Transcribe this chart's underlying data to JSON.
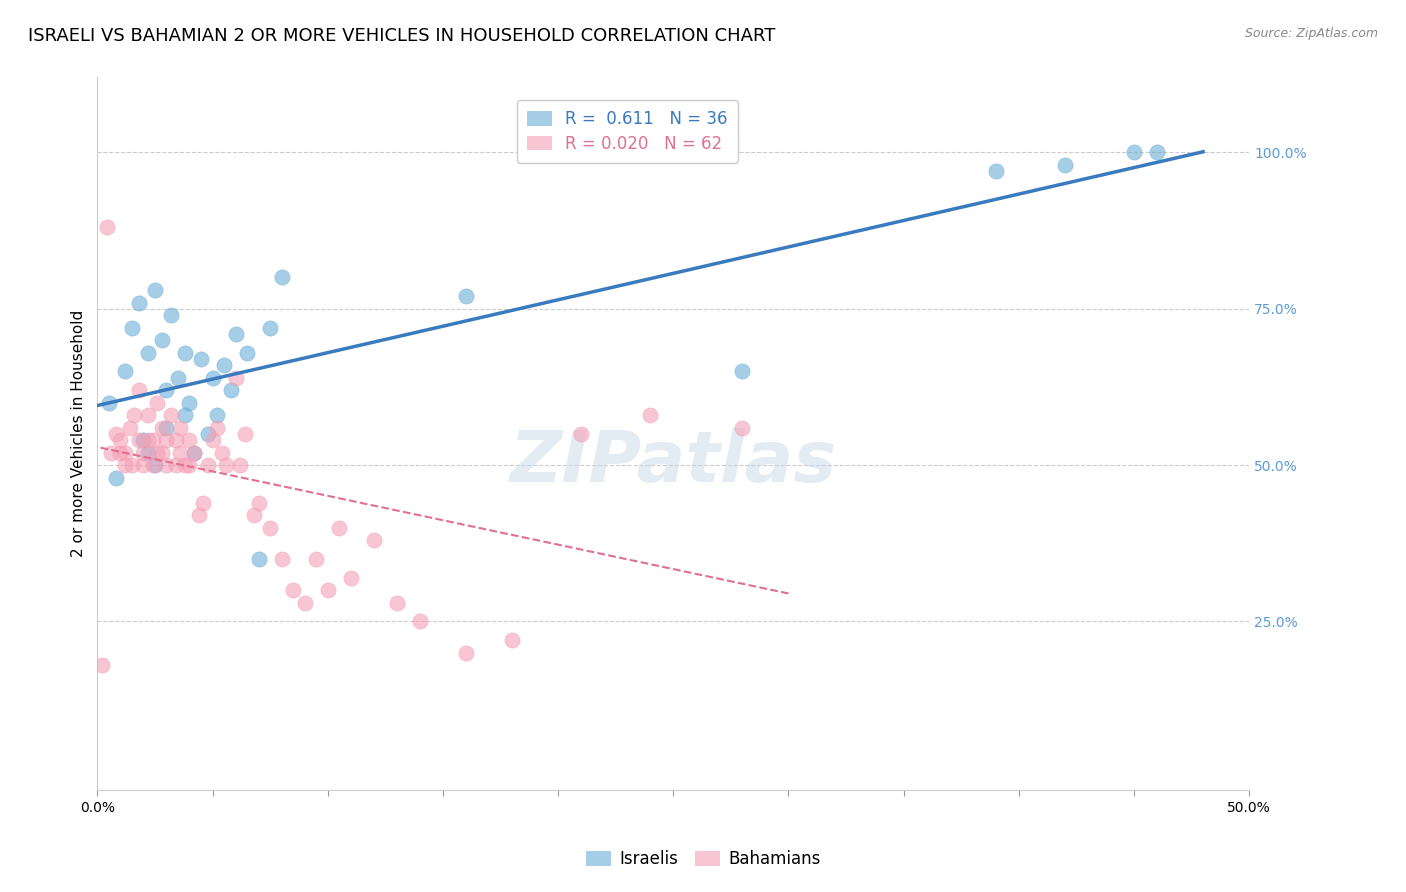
{
  "title": "ISRAELI VS BAHAMIAN 2 OR MORE VEHICLES IN HOUSEHOLD CORRELATION CHART",
  "source": "Source: ZipAtlas.com",
  "xlabel": "",
  "ylabel": "2 or more Vehicles in Household",
  "xlim": [
    0.0,
    0.5
  ],
  "ylim": [
    -0.02,
    1.12
  ],
  "xticks": [
    0.0,
    0.05,
    0.1,
    0.15,
    0.2,
    0.25,
    0.3,
    0.35,
    0.4,
    0.45,
    0.5
  ],
  "xticklabels": [
    "0.0%",
    "",
    "",
    "",
    "",
    "",
    "",
    "",
    "",
    "",
    "50.0%"
  ],
  "ytick_positions": [
    0.25,
    0.5,
    0.75,
    1.0
  ],
  "ytick_labels": [
    "25.0%",
    "50.0%",
    "75.0%",
    "100.0%"
  ],
  "israeli_color": "#6baed6",
  "bahamian_color": "#f4a0b5",
  "israeli_R": 0.611,
  "israeli_N": 36,
  "bahamian_R": 0.02,
  "bahamian_N": 62,
  "watermark": "ZIPatlas",
  "israeli_x": [
    0.005,
    0.008,
    0.012,
    0.015,
    0.018,
    0.02,
    0.022,
    0.022,
    0.025,
    0.025,
    0.028,
    0.03,
    0.03,
    0.032,
    0.035,
    0.038,
    0.038,
    0.04,
    0.042,
    0.045,
    0.048,
    0.05,
    0.052,
    0.055,
    0.058,
    0.06,
    0.065,
    0.07,
    0.075,
    0.08,
    0.16,
    0.28,
    0.39,
    0.42,
    0.45,
    0.46
  ],
  "israeli_y": [
    0.6,
    0.48,
    0.65,
    0.72,
    0.76,
    0.54,
    0.68,
    0.52,
    0.78,
    0.5,
    0.7,
    0.56,
    0.62,
    0.74,
    0.64,
    0.58,
    0.68,
    0.6,
    0.52,
    0.67,
    0.55,
    0.64,
    0.58,
    0.66,
    0.62,
    0.71,
    0.68,
    0.35,
    0.72,
    0.8,
    0.77,
    0.65,
    0.97,
    0.98,
    1.0,
    1.0
  ],
  "bahamian_x": [
    0.002,
    0.004,
    0.006,
    0.008,
    0.01,
    0.01,
    0.012,
    0.012,
    0.014,
    0.015,
    0.016,
    0.018,
    0.018,
    0.02,
    0.02,
    0.022,
    0.022,
    0.024,
    0.024,
    0.026,
    0.026,
    0.028,
    0.028,
    0.03,
    0.03,
    0.032,
    0.034,
    0.034,
    0.036,
    0.036,
    0.038,
    0.04,
    0.04,
    0.042,
    0.044,
    0.046,
    0.048,
    0.05,
    0.052,
    0.054,
    0.056,
    0.06,
    0.062,
    0.064,
    0.068,
    0.07,
    0.075,
    0.08,
    0.085,
    0.09,
    0.095,
    0.1,
    0.105,
    0.11,
    0.12,
    0.13,
    0.14,
    0.16,
    0.18,
    0.21,
    0.24,
    0.28
  ],
  "bahamian_y": [
    0.18,
    0.88,
    0.52,
    0.55,
    0.52,
    0.54,
    0.5,
    0.52,
    0.56,
    0.5,
    0.58,
    0.54,
    0.62,
    0.5,
    0.52,
    0.54,
    0.58,
    0.5,
    0.54,
    0.52,
    0.6,
    0.56,
    0.52,
    0.5,
    0.54,
    0.58,
    0.5,
    0.54,
    0.52,
    0.56,
    0.5,
    0.5,
    0.54,
    0.52,
    0.42,
    0.44,
    0.5,
    0.54,
    0.56,
    0.52,
    0.5,
    0.64,
    0.5,
    0.55,
    0.42,
    0.44,
    0.4,
    0.35,
    0.3,
    0.28,
    0.35,
    0.3,
    0.4,
    0.32,
    0.38,
    0.28,
    0.25,
    0.2,
    0.22,
    0.55,
    0.58,
    0.56
  ],
  "background_color": "#ffffff",
  "grid_color": "#cccccc",
  "title_fontsize": 13,
  "axis_label_fontsize": 11,
  "tick_fontsize": 10,
  "legend_fontsize": 12,
  "israeli_line_color": "#3a7abf",
  "bahamian_line_color": "#e07090",
  "right_tick_color": "#5b9bd5"
}
